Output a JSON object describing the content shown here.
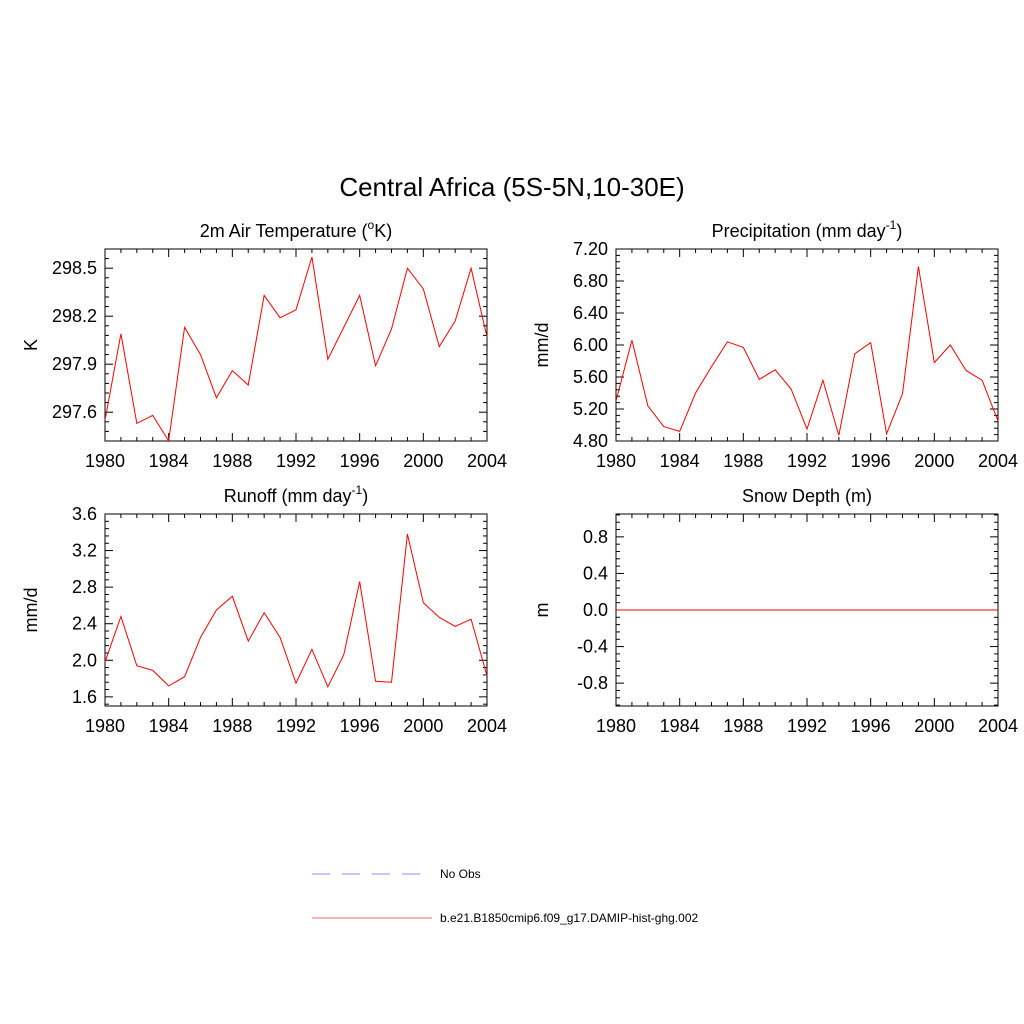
{
  "title": "Central Africa (5S-5N,10-30E)",
  "colors": {
    "model": "#ff0000",
    "obs": "#b3b3ff",
    "model_legend": "#ff9999"
  },
  "legend": {
    "obs_label": "No Obs",
    "model_label": "b.e21.B1850cmip6.f09_g17.DAMIP-hist-ghg.002"
  },
  "chart_data": [
    {
      "type": "line",
      "title": "2m Air Temperature (",
      "title_sup": "o",
      "title_after": "K)",
      "ylabel": "K",
      "xlim": [
        1980,
        2004
      ],
      "ylim": [
        297.42,
        298.62
      ],
      "xticks": [
        1980,
        1984,
        1988,
        1992,
        1996,
        2000,
        2004
      ],
      "yticks": [
        297.6,
        297.9,
        298.2,
        298.5
      ],
      "ytick_labels": [
        "297.6",
        "297.9",
        "298.2",
        "298.5"
      ],
      "x": [
        1980,
        1981,
        1982,
        1983,
        1984,
        1985,
        1986,
        1987,
        1988,
        1989,
        1990,
        1991,
        1992,
        1993,
        1994,
        1995,
        1996,
        1997,
        1998,
        1999,
        2000,
        2001,
        2002,
        2003,
        2004
      ],
      "series": [
        {
          "values": [
            297.55,
            298.09,
            297.53,
            297.58,
            297.42,
            298.13,
            297.96,
            297.69,
            297.86,
            297.77,
            298.33,
            298.19,
            298.24,
            298.57,
            297.93,
            298.13,
            298.33,
            297.89,
            298.12,
            298.5,
            298.37,
            298.01,
            298.17,
            298.5,
            298.07
          ]
        }
      ]
    },
    {
      "type": "line",
      "title": "Precipitation (mm day",
      "title_sup": "-1",
      "title_after": ")",
      "ylabel": "mm/d",
      "xlim": [
        1980,
        2004
      ],
      "ylim": [
        4.8,
        7.2
      ],
      "xticks": [
        1980,
        1984,
        1988,
        1992,
        1996,
        2000,
        2004
      ],
      "yticks": [
        4.8,
        5.2,
        5.6,
        6.0,
        6.4,
        6.8,
        7.2
      ],
      "ytick_labels": [
        "4.80",
        "5.20",
        "5.60",
        "6.00",
        "6.40",
        "6.80",
        "7.20"
      ],
      "x": [
        1980,
        1981,
        1982,
        1983,
        1984,
        1985,
        1986,
        1987,
        1988,
        1989,
        1990,
        1991,
        1992,
        1993,
        1994,
        1995,
        1996,
        1997,
        1998,
        1999,
        2000,
        2001,
        2002,
        2003,
        2004
      ],
      "series": [
        {
          "values": [
            5.3,
            6.06,
            5.24,
            4.98,
            4.92,
            5.4,
            5.73,
            6.04,
            5.97,
            5.57,
            5.69,
            5.45,
            4.95,
            5.56,
            4.87,
            5.89,
            6.03,
            4.89,
            5.39,
            6.98,
            5.78,
            6.0,
            5.68,
            5.56,
            5.05
          ]
        }
      ]
    },
    {
      "type": "line",
      "title": "Runoff (mm day",
      "title_sup": "-1",
      "title_after": ")",
      "ylabel": "mm/d",
      "xlim": [
        1980,
        2004
      ],
      "ylim": [
        1.5,
        3.6
      ],
      "xticks": [
        1980,
        1984,
        1988,
        1992,
        1996,
        2000,
        2004
      ],
      "yticks": [
        1.6,
        2.0,
        2.4,
        2.8,
        3.2,
        3.6
      ],
      "ytick_labels": [
        "1.6",
        "2.0",
        "2.4",
        "2.8",
        "3.2",
        "3.6"
      ],
      "x": [
        1980,
        1981,
        1982,
        1983,
        1984,
        1985,
        1986,
        1987,
        1988,
        1989,
        1990,
        1991,
        1992,
        1993,
        1994,
        1995,
        1996,
        1997,
        1998,
        1999,
        2000,
        2001,
        2002,
        2003,
        2004
      ],
      "series": [
        {
          "values": [
            1.98,
            2.48,
            1.94,
            1.89,
            1.72,
            1.82,
            2.25,
            2.55,
            2.7,
            2.21,
            2.52,
            2.25,
            1.75,
            2.12,
            1.71,
            2.06,
            2.86,
            1.77,
            1.76,
            3.38,
            2.63,
            2.47,
            2.37,
            2.45,
            1.83
          ]
        }
      ]
    },
    {
      "type": "line",
      "title": "Snow Depth (m)",
      "title_sup": "",
      "title_after": "",
      "ylabel": "m",
      "xlim": [
        1980,
        2004
      ],
      "ylim": [
        -1.05,
        1.05
      ],
      "xticks": [
        1980,
        1984,
        1988,
        1992,
        1996,
        2000,
        2004
      ],
      "yticks": [
        -0.8,
        -0.4,
        0.0,
        0.4,
        0.8
      ],
      "ytick_labels": [
        "-0.8",
        "-0.4",
        "0.0",
        "0.4",
        "0.8"
      ],
      "x": [
        1980,
        2004
      ],
      "series": [
        {
          "values": [
            0.0,
            0.0
          ]
        }
      ]
    }
  ]
}
